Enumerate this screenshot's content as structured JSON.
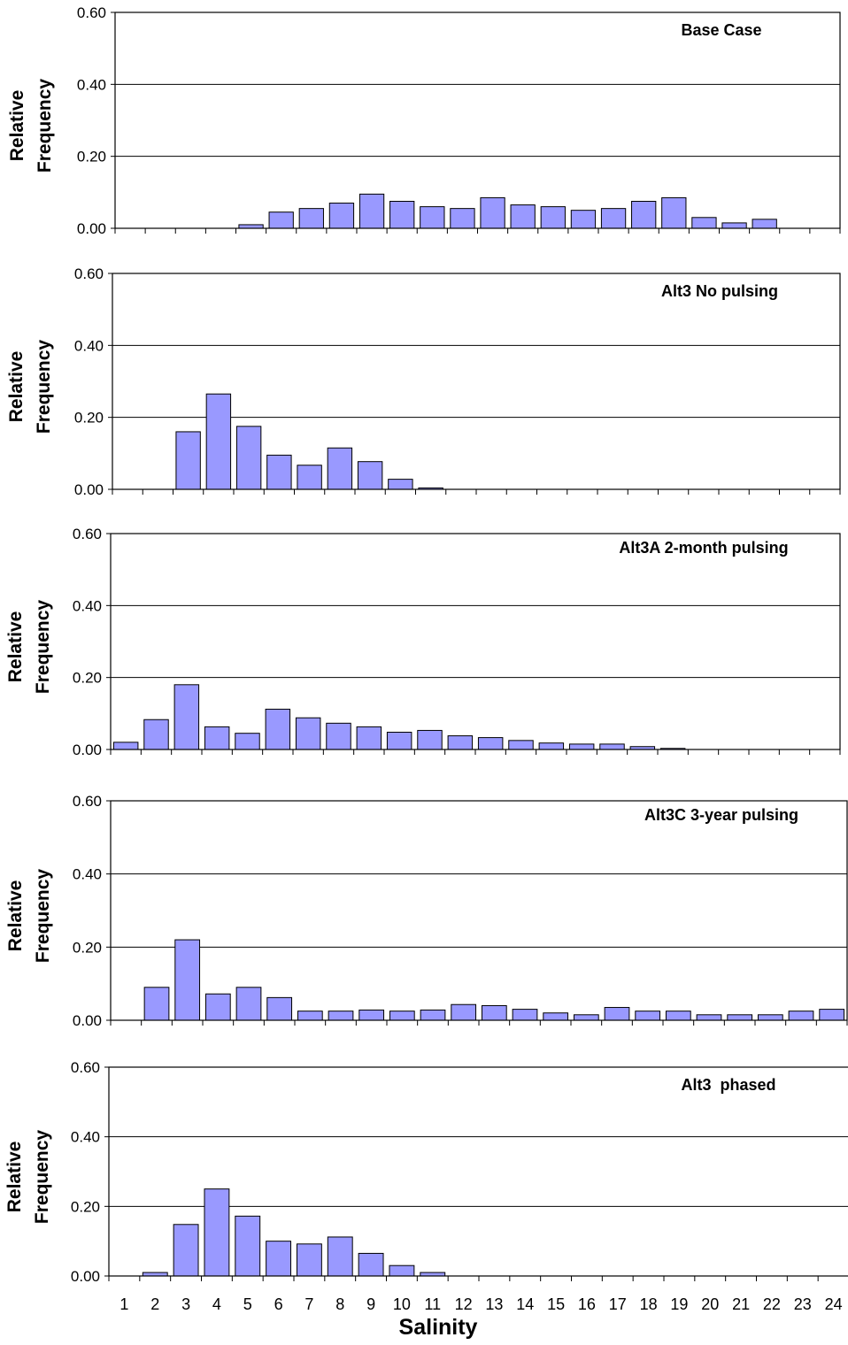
{
  "chart_data": [
    {
      "type": "bar",
      "title": "Base Case",
      "ylabel": "Relative Frequency",
      "ylabel_lines": [
        "Relative",
        "Frequency"
      ],
      "ylim": [
        0,
        0.6
      ],
      "yticks": [
        "0.00",
        "0.20",
        "0.40",
        "0.60"
      ],
      "grid": true,
      "categories": [
        "1",
        "2",
        "3",
        "4",
        "5",
        "6",
        "7",
        "8",
        "9",
        "10",
        "11",
        "12",
        "13",
        "14",
        "15",
        "16",
        "17",
        "18",
        "19",
        "20",
        "21",
        "22",
        "23",
        "24"
      ],
      "values": [
        0,
        0,
        0,
        0,
        0.01,
        0.045,
        0.055,
        0.07,
        0.095,
        0.075,
        0.06,
        0.055,
        0.085,
        0.065,
        0.06,
        0.05,
        0.055,
        0.075,
        0.085,
        0.03,
        0.015,
        0.025,
        0,
        0
      ]
    },
    {
      "type": "bar",
      "title": "Alt3 No pulsing",
      "ylabel": "Relative Frequency",
      "ylabel_lines": [
        "Relative",
        "Frequency"
      ],
      "ylim": [
        0,
        0.6
      ],
      "yticks": [
        "0.00",
        "0.20",
        "0.40",
        "0.60"
      ],
      "grid": true,
      "categories": [
        "1",
        "2",
        "3",
        "4",
        "5",
        "6",
        "7",
        "8",
        "9",
        "10",
        "11",
        "12",
        "13",
        "14",
        "15",
        "16",
        "17",
        "18",
        "19",
        "20",
        "21",
        "22",
        "23",
        "24"
      ],
      "values": [
        0,
        0,
        0.16,
        0.265,
        0.175,
        0.095,
        0.067,
        0.115,
        0.077,
        0.028,
        0.004,
        0,
        0,
        0,
        0,
        0,
        0,
        0,
        0,
        0,
        0,
        0,
        0,
        0
      ]
    },
    {
      "type": "bar",
      "title": "Alt3A 2-month pulsing",
      "ylabel": "Relative Frequency",
      "ylabel_lines": [
        "Relative",
        "Frequency"
      ],
      "ylim": [
        0,
        0.6
      ],
      "yticks": [
        "0.00",
        "0.20",
        "0.40",
        "0.60"
      ],
      "grid": true,
      "categories": [
        "1",
        "2",
        "3",
        "4",
        "5",
        "6",
        "7",
        "8",
        "9",
        "10",
        "11",
        "12",
        "13",
        "14",
        "15",
        "16",
        "17",
        "18",
        "19",
        "20",
        "21",
        "22",
        "23",
        "24"
      ],
      "values": [
        0.02,
        0.083,
        0.18,
        0.063,
        0.045,
        0.112,
        0.088,
        0.073,
        0.063,
        0.048,
        0.053,
        0.038,
        0.033,
        0.025,
        0.018,
        0.015,
        0.015,
        0.008,
        0.003,
        0,
        0,
        0,
        0,
        0
      ]
    },
    {
      "type": "bar",
      "title": "Alt3C 3-year pulsing",
      "ylabel": "Relative Frequency",
      "ylabel_lines": [
        "Relative",
        "Frequency"
      ],
      "ylim": [
        0,
        0.6
      ],
      "yticks": [
        "0.00",
        "0.20",
        "0.40",
        "0.60"
      ],
      "grid": true,
      "categories": [
        "1",
        "2",
        "3",
        "4",
        "5",
        "6",
        "7",
        "8",
        "9",
        "10",
        "11",
        "12",
        "13",
        "14",
        "15",
        "16",
        "17",
        "18",
        "19",
        "20",
        "21",
        "22",
        "23",
        "24"
      ],
      "values": [
        0,
        0.09,
        0.22,
        0.072,
        0.09,
        0.062,
        0.025,
        0.025,
        0.028,
        0.025,
        0.028,
        0.043,
        0.04,
        0.03,
        0.02,
        0.015,
        0.035,
        0.025,
        0.025,
        0.015,
        0.015,
        0.015,
        0.025,
        0.03
      ]
    },
    {
      "type": "bar",
      "title": "Alt3  phased",
      "ylabel": "Relative Frequency",
      "ylabel_lines": [
        "Relative",
        "Frequency"
      ],
      "ylim": [
        0,
        0.6
      ],
      "yticks": [
        "0.00",
        "0.20",
        "0.40",
        "0.60"
      ],
      "grid": true,
      "categories": [
        "1",
        "2",
        "3",
        "4",
        "5",
        "6",
        "7",
        "8",
        "9",
        "10",
        "11",
        "12",
        "13",
        "14",
        "15",
        "16",
        "17",
        "18",
        "19",
        "20",
        "21",
        "22",
        "23",
        "24"
      ],
      "values": [
        0,
        0.01,
        0.148,
        0.25,
        0.172,
        0.1,
        0.092,
        0.112,
        0.065,
        0.03,
        0.01,
        0,
        0,
        0,
        0,
        0,
        0,
        0,
        0,
        0,
        0,
        0,
        0,
        0
      ],
      "xlabel": "Salinity"
    }
  ],
  "style": {
    "bar_fill": "#9999ff",
    "bar_stroke": "#000000",
    "grid_color": "#000000",
    "plot_background": "#ffffff"
  }
}
